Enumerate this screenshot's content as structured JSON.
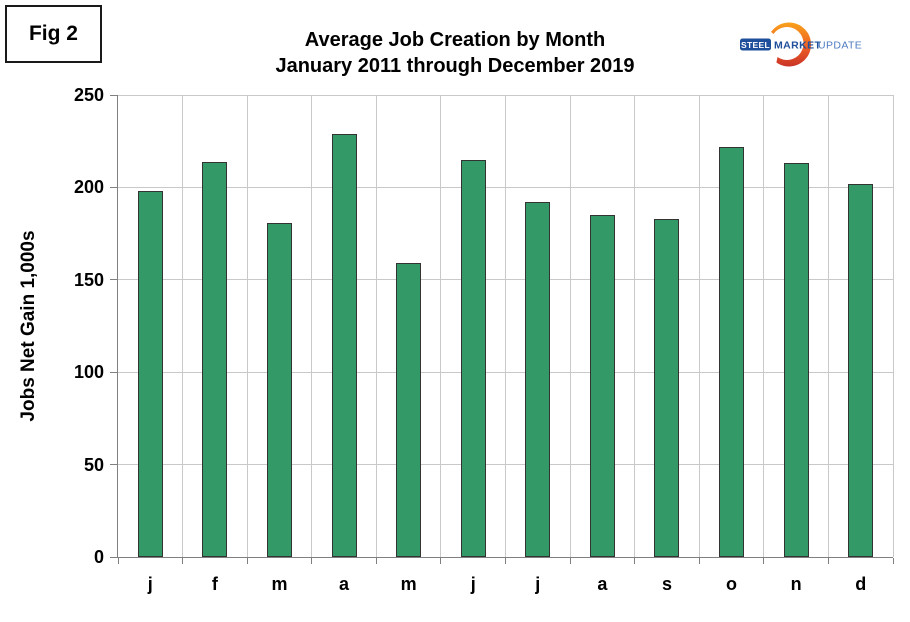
{
  "figure_label": "Fig 2",
  "title": {
    "line1": "Average Job Creation by Month",
    "line2": "January 2011 through December 2019"
  },
  "logo": {
    "steel": "STEEL",
    "market": "MARKET",
    "update": "UPDATE",
    "badge_color": "#1d4f9b",
    "market_color": "#1d4f9b",
    "update_color": "#4e7cc0",
    "swoosh_top_color": "#f9a11b",
    "swoosh_mid_color": "#ee5f24",
    "swoosh_bottom_color": "#c93327"
  },
  "chart_data": {
    "type": "bar",
    "title": "Average Job Creation by Month",
    "subtitle": "January 2011 through December 2019",
    "categories": [
      "j",
      "f",
      "m",
      "a",
      "m",
      "j",
      "j",
      "a",
      "s",
      "o",
      "n",
      "d"
    ],
    "values": [
      198,
      214,
      181,
      229,
      159,
      215,
      192,
      185,
      183,
      222,
      213,
      202
    ],
    "xlabel": "",
    "ylabel": "Jobs Net Gain 1,000s",
    "ylim": [
      0,
      250
    ],
    "yticks": [
      0,
      50,
      100,
      150,
      200,
      250
    ],
    "grid": true,
    "legend": "none",
    "bar_color": "#339966",
    "bar_border_color": "#333333",
    "gridline_color": "#c9c9c9",
    "axis_color": "#808080"
  }
}
